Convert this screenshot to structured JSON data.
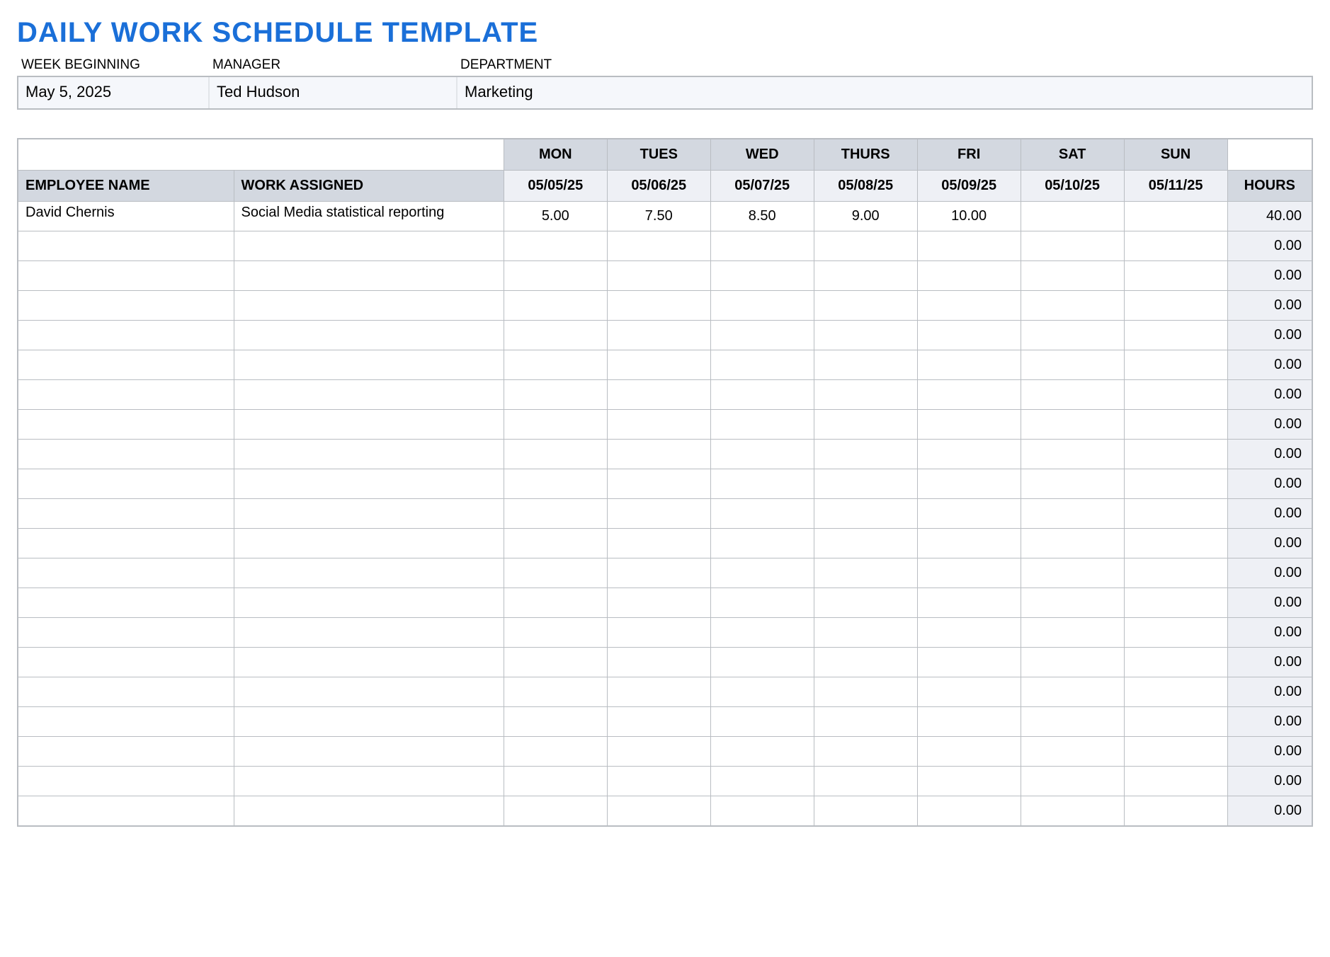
{
  "title": "DAILY WORK SCHEDULE TEMPLATE",
  "colors": {
    "title": "#1a6fd8",
    "header_bg": "#d3d8e0",
    "subheader_bg": "#eef0f5",
    "meta_bg": "#f5f7fb",
    "border": "#b9bdc2",
    "hours_bg": "#eef0f5"
  },
  "meta": {
    "labels": {
      "week_beginning": "WEEK BEGINNING",
      "manager": "MANAGER",
      "department": "DEPARTMENT"
    },
    "values": {
      "week_beginning": "May 5, 2025",
      "manager": "Ted Hudson",
      "department": "Marketing"
    }
  },
  "schedule": {
    "day_headers": [
      "MON",
      "TUES",
      "WED",
      "THURS",
      "FRI",
      "SAT",
      "SUN"
    ],
    "dates": [
      "05/05/25",
      "05/06/25",
      "05/07/25",
      "05/08/25",
      "05/09/25",
      "05/10/25",
      "05/11/25"
    ],
    "col_labels": {
      "employee": "EMPLOYEE NAME",
      "work": "WORK ASSIGNED",
      "hours": "HOURS"
    },
    "rows": [
      {
        "employee": "David Chernis",
        "work": "Social Media statistical reporting",
        "days": [
          "5.00",
          "7.50",
          "8.50",
          "9.00",
          "10.00",
          "",
          ""
        ],
        "hours": "40.00"
      },
      {
        "employee": "",
        "work": "",
        "days": [
          "",
          "",
          "",
          "",
          "",
          "",
          ""
        ],
        "hours": "0.00"
      },
      {
        "employee": "",
        "work": "",
        "days": [
          "",
          "",
          "",
          "",
          "",
          "",
          ""
        ],
        "hours": "0.00"
      },
      {
        "employee": "",
        "work": "",
        "days": [
          "",
          "",
          "",
          "",
          "",
          "",
          ""
        ],
        "hours": "0.00"
      },
      {
        "employee": "",
        "work": "",
        "days": [
          "",
          "",
          "",
          "",
          "",
          "",
          ""
        ],
        "hours": "0.00"
      },
      {
        "employee": "",
        "work": "",
        "days": [
          "",
          "",
          "",
          "",
          "",
          "",
          ""
        ],
        "hours": "0.00"
      },
      {
        "employee": "",
        "work": "",
        "days": [
          "",
          "",
          "",
          "",
          "",
          "",
          ""
        ],
        "hours": "0.00"
      },
      {
        "employee": "",
        "work": "",
        "days": [
          "",
          "",
          "",
          "",
          "",
          "",
          ""
        ],
        "hours": "0.00"
      },
      {
        "employee": "",
        "work": "",
        "days": [
          "",
          "",
          "",
          "",
          "",
          "",
          ""
        ],
        "hours": "0.00"
      },
      {
        "employee": "",
        "work": "",
        "days": [
          "",
          "",
          "",
          "",
          "",
          "",
          ""
        ],
        "hours": "0.00"
      },
      {
        "employee": "",
        "work": "",
        "days": [
          "",
          "",
          "",
          "",
          "",
          "",
          ""
        ],
        "hours": "0.00"
      },
      {
        "employee": "",
        "work": "",
        "days": [
          "",
          "",
          "",
          "",
          "",
          "",
          ""
        ],
        "hours": "0.00"
      },
      {
        "employee": "",
        "work": "",
        "days": [
          "",
          "",
          "",
          "",
          "",
          "",
          ""
        ],
        "hours": "0.00"
      },
      {
        "employee": "",
        "work": "",
        "days": [
          "",
          "",
          "",
          "",
          "",
          "",
          ""
        ],
        "hours": "0.00"
      },
      {
        "employee": "",
        "work": "",
        "days": [
          "",
          "",
          "",
          "",
          "",
          "",
          ""
        ],
        "hours": "0.00"
      },
      {
        "employee": "",
        "work": "",
        "days": [
          "",
          "",
          "",
          "",
          "",
          "",
          ""
        ],
        "hours": "0.00"
      },
      {
        "employee": "",
        "work": "",
        "days": [
          "",
          "",
          "",
          "",
          "",
          "",
          ""
        ],
        "hours": "0.00"
      },
      {
        "employee": "",
        "work": "",
        "days": [
          "",
          "",
          "",
          "",
          "",
          "",
          ""
        ],
        "hours": "0.00"
      },
      {
        "employee": "",
        "work": "",
        "days": [
          "",
          "",
          "",
          "",
          "",
          "",
          ""
        ],
        "hours": "0.00"
      },
      {
        "employee": "",
        "work": "",
        "days": [
          "",
          "",
          "",
          "",
          "",
          "",
          ""
        ],
        "hours": "0.00"
      },
      {
        "employee": "",
        "work": "",
        "days": [
          "",
          "",
          "",
          "",
          "",
          "",
          ""
        ],
        "hours": "0.00"
      }
    ]
  }
}
